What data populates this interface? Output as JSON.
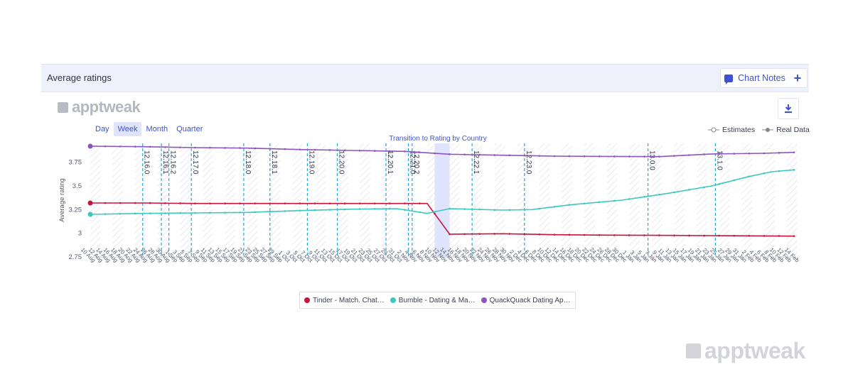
{
  "header": {
    "title": "Average ratings",
    "chart_notes_label": "Chart Notes",
    "add_label": "+"
  },
  "brand": {
    "logo_text": "apptweak"
  },
  "periods": [
    "Day",
    "Week",
    "Month",
    "Quarter"
  ],
  "active_period": "Week",
  "legend_top": [
    "Estimates",
    "Real Data"
  ],
  "colors": {
    "tinder": "#c8143c",
    "bumble": "#3cc8be",
    "quack": "#8c55be",
    "accent": "#3d52d5",
    "version_line": "#2aa7d6"
  },
  "chart_data": {
    "type": "line",
    "ylabel": "Average rating",
    "ylim": [
      2.75,
      3.95
    ],
    "yticks": [
      2.75,
      3,
      3.25,
      3.5,
      3.75
    ],
    "grid": false,
    "x": [
      "10 Aug",
      "12 Aug",
      "14 Aug",
      "16 Aug",
      "18 Aug",
      "20 Aug",
      "22 Aug",
      "24 Aug",
      "26 Aug",
      "28 Aug",
      "30 Aug",
      "1 Sep",
      "3 Sep",
      "5 Sep",
      "7 Sep",
      "9 Sep",
      "11 Sep",
      "13 Sep",
      "15 Sep",
      "17 Sep",
      "19 Sep",
      "21 Sep",
      "23 Sep",
      "25 Sep",
      "27 Sep",
      "29 Sep",
      "1 Oct",
      "3 Oct",
      "5 Oct",
      "7 Oct",
      "9 Oct",
      "11 Oct",
      "13 Oct",
      "15 Oct",
      "17 Oct",
      "19 Oct",
      "21 Oct",
      "23 Oct",
      "25 Oct",
      "27 Oct",
      "29 Oct",
      "31 Oct",
      "2 Nov",
      "4 Nov",
      "6 Nov",
      "8 Nov",
      "10 Nov",
      "12 Nov",
      "14 Nov",
      "16 Nov",
      "18 Nov",
      "20 Nov",
      "22 Nov",
      "24 Nov",
      "26 Nov",
      "28 Nov",
      "30 Nov",
      "2 Dec",
      "4 Dec",
      "6 Dec",
      "8 Dec",
      "10 Dec",
      "12 Dec",
      "14 Dec",
      "16 Dec",
      "18 Dec",
      "20 Dec",
      "22 Dec",
      "24 Dec",
      "26 Dec",
      "28 Dec",
      "30 Dec",
      "1 Jan",
      "3 Jan",
      "5 Jan",
      "7 Jan",
      "9 Jan",
      "11 Jan",
      "13 Jan",
      "15 Jan",
      "17 Jan",
      "19 Jan",
      "21 Jan",
      "23 Jan",
      "25 Jan",
      "27 Jan",
      "29 Jan",
      "31 Jan",
      "2 Feb",
      "4 Feb",
      "6 Feb",
      "8 Feb",
      "10 Feb",
      "12 Feb",
      "14 Feb"
    ],
    "series": [
      {
        "name": "Tinder - Match. Chat…",
        "color": "#c8143c",
        "points": [
          [
            "10 Aug",
            3.32
          ],
          [
            "24 Aug",
            3.32
          ],
          [
            "7 Sep",
            3.315
          ],
          [
            "21 Sep",
            3.315
          ],
          [
            "5 Oct",
            3.315
          ],
          [
            "19 Oct",
            3.315
          ],
          [
            "2 Nov",
            3.315
          ],
          [
            "8 Nov",
            3.315
          ],
          [
            "14 Nov",
            2.99
          ],
          [
            "28 Nov",
            2.995
          ],
          [
            "12 Dec",
            2.985
          ],
          [
            "26 Dec",
            2.98
          ],
          [
            "9 Jan",
            2.978
          ],
          [
            "23 Jan",
            2.975
          ],
          [
            "6 Feb",
            2.972
          ],
          [
            "14 Feb",
            2.97
          ]
        ]
      },
      {
        "name": "Bumble - Dating & Ma…",
        "color": "#3cc8be",
        "points": [
          [
            "10 Aug",
            3.2
          ],
          [
            "24 Aug",
            3.21
          ],
          [
            "7 Sep",
            3.215
          ],
          [
            "21 Sep",
            3.22
          ],
          [
            "5 Oct",
            3.24
          ],
          [
            "19 Oct",
            3.255
          ],
          [
            "31 Oct",
            3.26
          ],
          [
            "8 Nov",
            3.21
          ],
          [
            "14 Nov",
            3.26
          ],
          [
            "28 Nov",
            3.245
          ],
          [
            "6 Dec",
            3.25
          ],
          [
            "16 Dec",
            3.3
          ],
          [
            "30 Dec",
            3.35
          ],
          [
            "11 Jan",
            3.42
          ],
          [
            "23 Jan",
            3.5
          ],
          [
            "2 Feb",
            3.6
          ],
          [
            "8 Feb",
            3.65
          ],
          [
            "14 Feb",
            3.67
          ]
        ]
      },
      {
        "name": "QuackQuack Dating Ap…",
        "color": "#8c55be",
        "points": [
          [
            "10 Aug",
            3.92
          ],
          [
            "24 Aug",
            3.915
          ],
          [
            "7 Sep",
            3.905
          ],
          [
            "21 Sep",
            3.9
          ],
          [
            "5 Oct",
            3.885
          ],
          [
            "19 Oct",
            3.875
          ],
          [
            "2 Nov",
            3.865
          ],
          [
            "14 Nov",
            3.835
          ],
          [
            "28 Nov",
            3.825
          ],
          [
            "12 Dec",
            3.815
          ],
          [
            "26 Dec",
            3.812
          ],
          [
            "9 Jan",
            3.81
          ],
          [
            "23 Jan",
            3.838
          ],
          [
            "6 Feb",
            3.845
          ],
          [
            "14 Feb",
            3.855
          ]
        ]
      }
    ],
    "version_markers": [
      {
        "x": "24 Aug",
        "label": "12.16.0"
      },
      {
        "x": "29 Aug",
        "label": "12.16.1"
      },
      {
        "x": "31 Aug",
        "label": "12.16.2"
      },
      {
        "x": "6 Sep",
        "label": "12.17.0"
      },
      {
        "x": "20 Sep",
        "label": "12.18.0"
      },
      {
        "x": "27 Sep",
        "label": "12.18.1"
      },
      {
        "x": "7 Oct",
        "label": "12.19.0"
      },
      {
        "x": "15 Oct",
        "label": "12.20.0"
      },
      {
        "x": "28 Oct",
        "label": "12.20.1"
      },
      {
        "x": "3 Nov",
        "label": "12.21.0"
      },
      {
        "x": "4 Nov",
        "label": "12.20.2"
      },
      {
        "x": "20 Nov",
        "label": "12.22.1"
      },
      {
        "x": "4 Dec",
        "label": "12.23.0"
      },
      {
        "x": "6 Jan",
        "label": "13.0.0"
      },
      {
        "x": "24 Jan",
        "label": "13.1.0"
      }
    ],
    "annotation": {
      "text": "Transition to Rating by Country",
      "x_from": "10 Nov",
      "x_to": "14 Nov"
    }
  }
}
